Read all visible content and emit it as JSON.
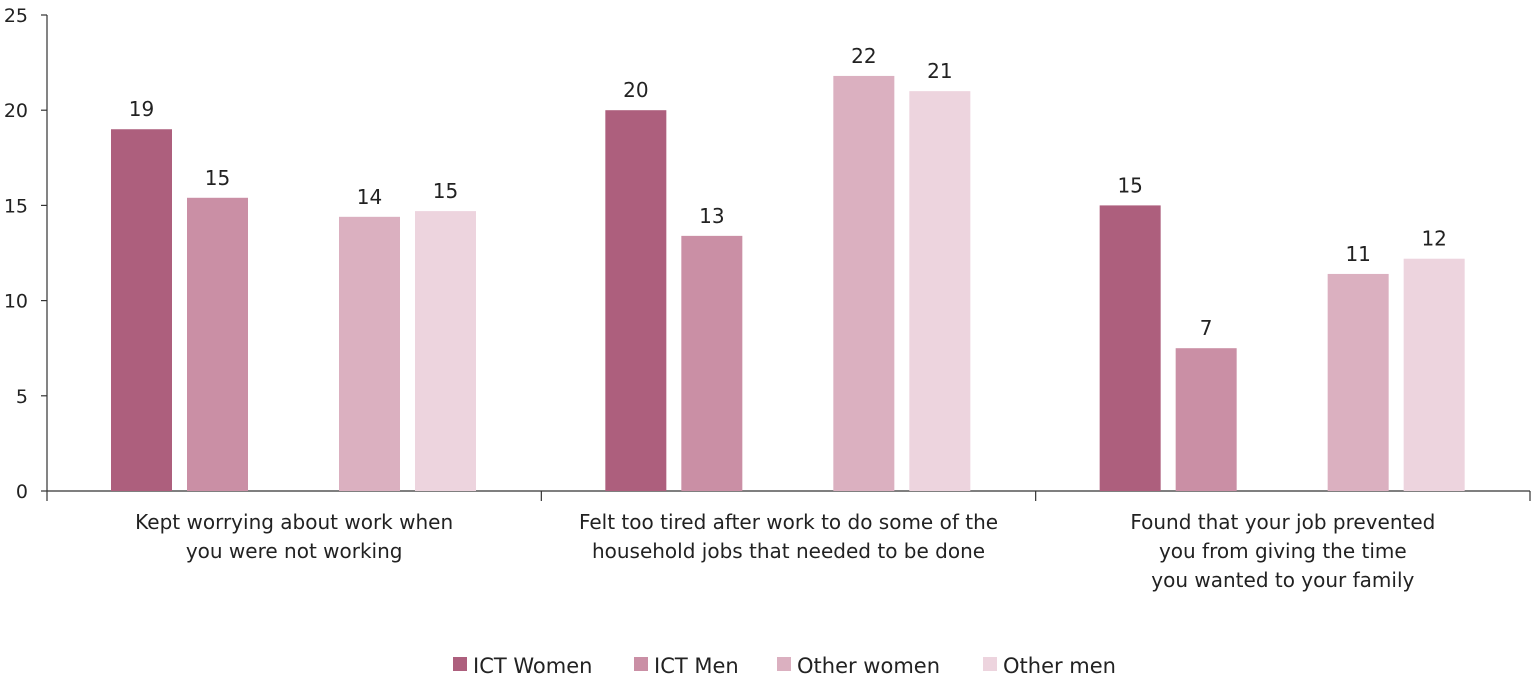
{
  "chart_data": {
    "type": "bar",
    "categories": [
      [
        "Kept worrying about work when",
        "you were not working"
      ],
      [
        "Felt too tired after work to do some of the",
        "household jobs that needed to be done"
      ],
      [
        "Found that your job prevented",
        "you from giving the time",
        "you wanted to your family"
      ]
    ],
    "series": [
      {
        "name": "ICT Women",
        "color": "#ad5f7d",
        "values": [
          19,
          20,
          15
        ],
        "labels": [
          "19",
          "20",
          "15"
        ]
      },
      {
        "name": "ICT Men",
        "color": "#ca8fa5",
        "values": [
          15.4,
          13.4,
          7.5
        ],
        "labels": [
          "15",
          "13",
          "7"
        ]
      },
      {
        "name": "Other women",
        "color": "#dbb0c0",
        "values": [
          14.4,
          21.8,
          11.4
        ],
        "labels": [
          "14",
          "22",
          "11"
        ]
      },
      {
        "name": "Other men",
        "color": "#edd4de",
        "values": [
          14.7,
          21,
          12.2
        ],
        "labels": [
          "15",
          "21",
          "12"
        ]
      }
    ],
    "ylim": [
      0,
      25
    ],
    "yticks": [
      0,
      5,
      10,
      15,
      20,
      25
    ],
    "grid": false,
    "legend": "bottom-center"
  }
}
